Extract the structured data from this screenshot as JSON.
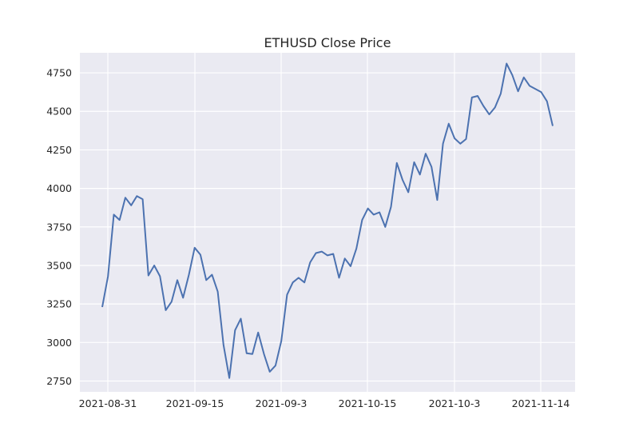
{
  "chart_data": {
    "type": "line",
    "title": "ETHUSD Close Price",
    "xlabel": "",
    "ylabel": "",
    "ylim": [
      2680,
      4880
    ],
    "y_ticks": [
      2750,
      3000,
      3250,
      3500,
      3750,
      4000,
      4250,
      4500,
      4750
    ],
    "x_tick_labels": [
      "2021-08-31",
      "2021-09-15",
      "2021-09-3",
      "2021-10-15",
      "2021-10-3",
      "2021-11-14"
    ],
    "grid": true,
    "legend": "none",
    "colors": {
      "background": "#eaeaf2",
      "grid": "#ffffff",
      "line": "#4c72b0"
    },
    "series": [
      {
        "values": [
          3230,
          3430,
          3830,
          3795,
          3940,
          3890,
          3950,
          3930,
          3435,
          3500,
          3430,
          3210,
          3265,
          3405,
          3290,
          3440,
          3615,
          3570,
          3405,
          3440,
          3330,
          2985,
          2770,
          3080,
          3155,
          2930,
          2925,
          3065,
          2925,
          2810,
          2850,
          3010,
          3310,
          3390,
          3420,
          3390,
          3520,
          3580,
          3590,
          3565,
          3575,
          3420,
          3545,
          3495,
          3610,
          3795,
          3870,
          3830,
          3845,
          3750,
          3880,
          4165,
          4055,
          3975,
          4170,
          4090,
          4225,
          4140,
          3925,
          4290,
          4420,
          4325,
          4290,
          4320,
          4590,
          4600,
          4535,
          4480,
          4525,
          4615,
          4810,
          4735,
          4630,
          4720,
          4665,
          4645,
          4625,
          4565,
          4405
        ]
      }
    ]
  }
}
